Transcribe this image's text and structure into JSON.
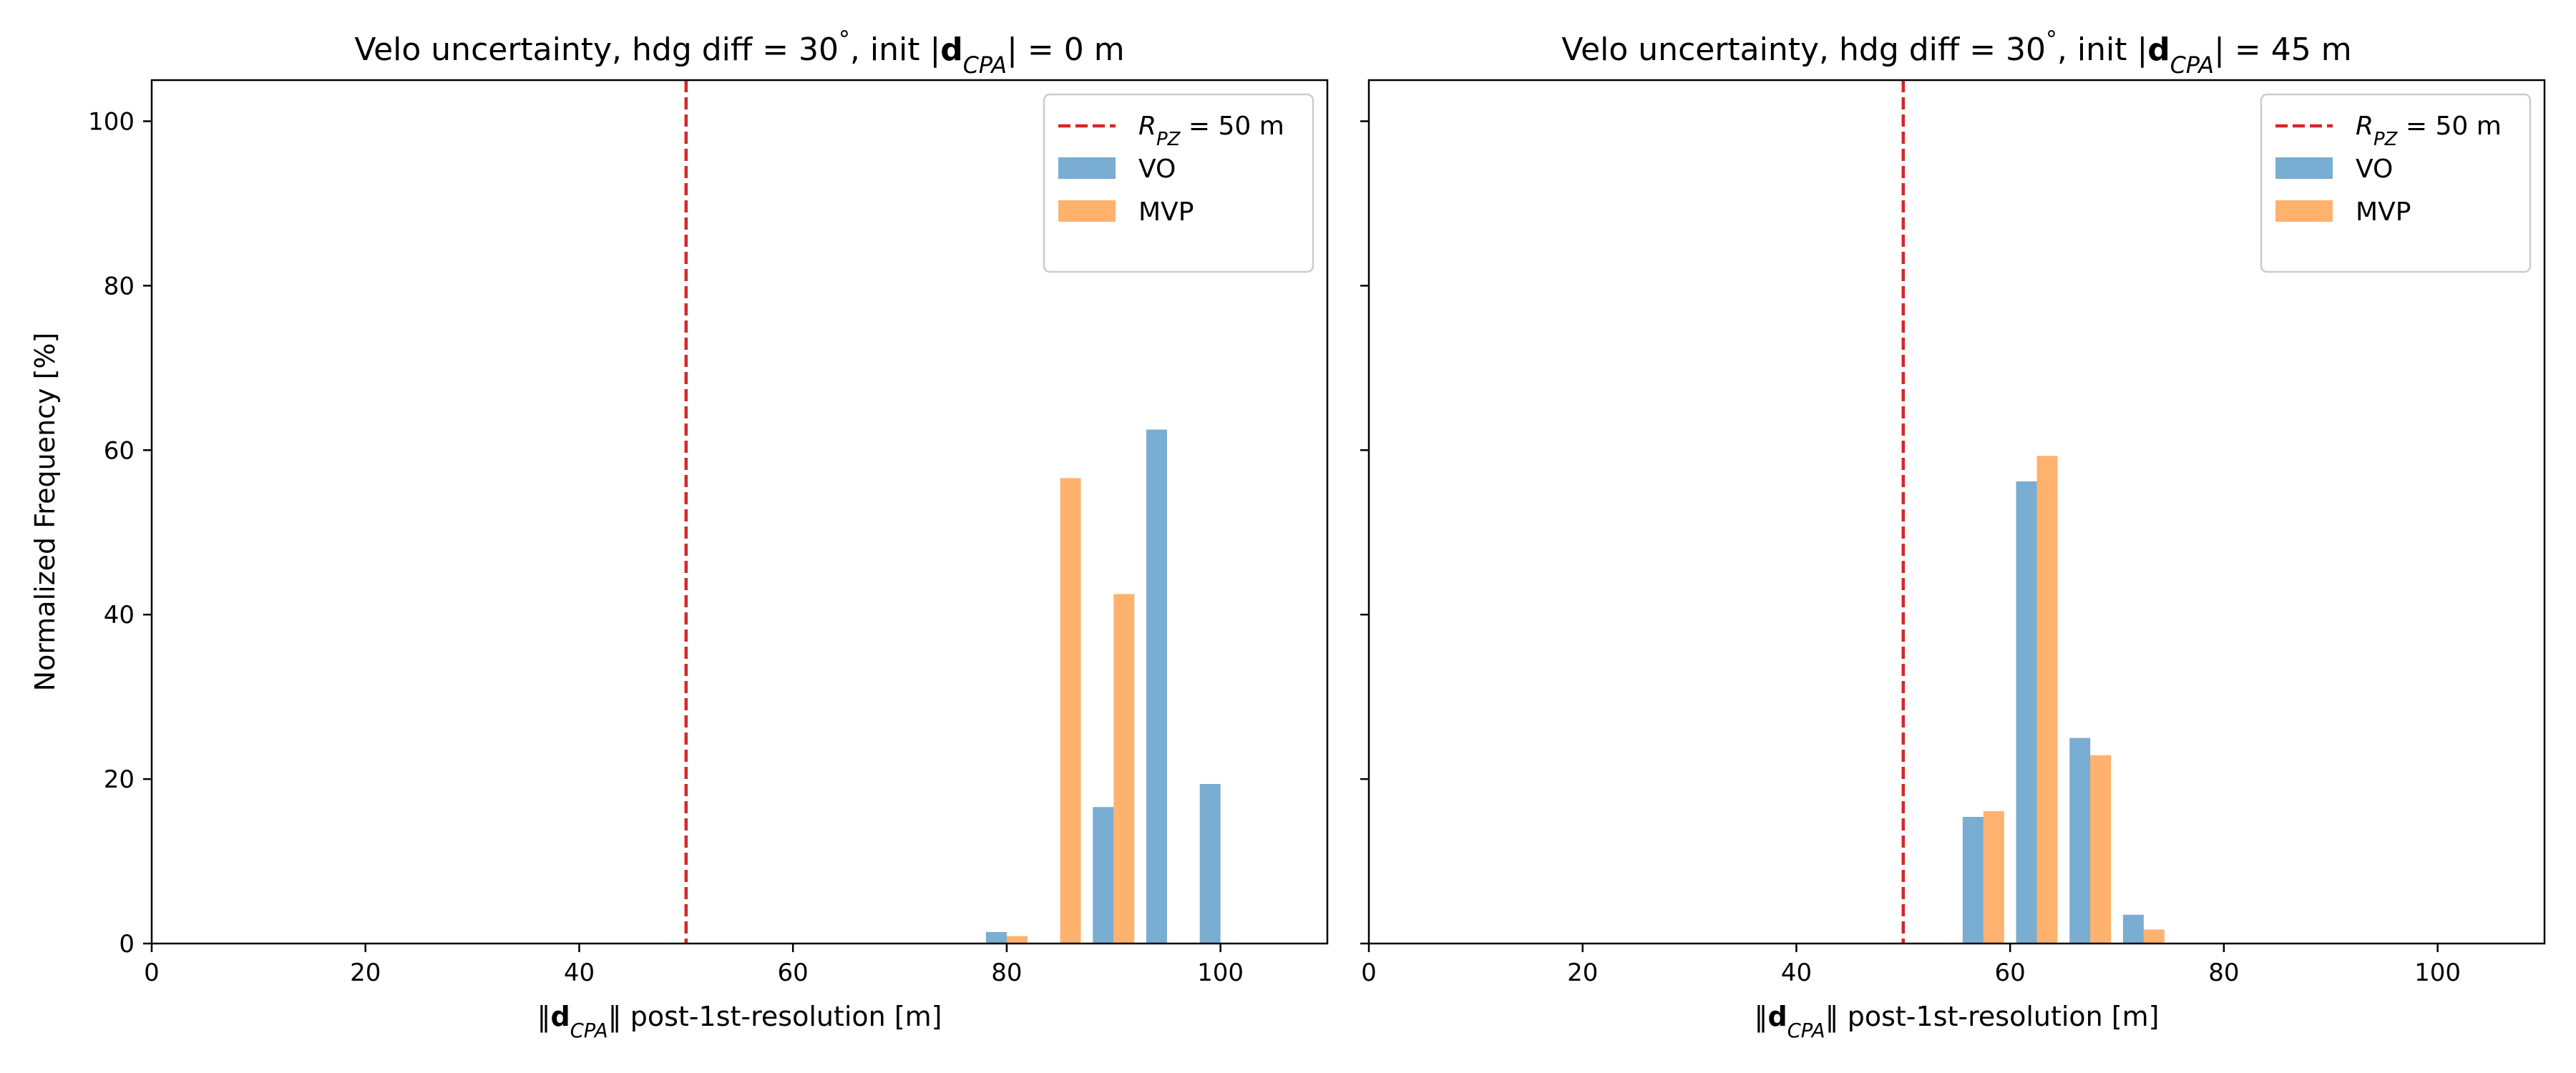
{
  "chart_data": [
    {
      "type": "bar",
      "title_parts": [
        "Velo uncertainty, hdg diff = 30",
        "°",
        ", init |",
        "d",
        "CPA",
        "| = 0 m"
      ],
      "xlabel_parts": [
        "‖",
        "d",
        "CPA",
        "‖ post-1st-resolution [m]"
      ],
      "ylabel": "Normalized Frequency [%]",
      "xlim": [
        0,
        110
      ],
      "ylim": [
        0,
        105
      ],
      "xticks": [
        0,
        20,
        40,
        60,
        80,
        100
      ],
      "yticks": [
        0,
        20,
        40,
        60,
        80,
        100
      ],
      "show_yticks": true,
      "bin_width": 5,
      "threshold": {
        "x": 50,
        "label_parts": [
          "R",
          "PZ",
          " = 50 m"
        ],
        "color": "#d62728"
      },
      "series": [
        {
          "name": "VO",
          "color": "#1f77b4",
          "bin_starts": [
            77.5,
            82.5,
            87.5,
            92.5,
            97.5
          ],
          "values": [
            1.4,
            0,
            16.6,
            62.5,
            19.4
          ]
        },
        {
          "name": "MVP",
          "color": "#ff7f0e",
          "bin_starts": [
            77.5,
            82.5,
            87.5,
            92.5,
            97.5
          ],
          "values": [
            0.9,
            56.6,
            42.5,
            0,
            0
          ]
        }
      ]
    },
    {
      "type": "bar",
      "title_parts": [
        "Velo uncertainty, hdg diff = 30",
        "°",
        ", init |",
        "d",
        "CPA",
        "| = 45 m"
      ],
      "xlabel_parts": [
        "‖",
        "d",
        "CPA",
        "‖ post-1st-resolution [m]"
      ],
      "ylabel": "",
      "xlim": [
        0,
        110
      ],
      "ylim": [
        0,
        105
      ],
      "xticks": [
        0,
        20,
        40,
        60,
        80,
        100
      ],
      "yticks": [
        0,
        20,
        40,
        60,
        80,
        100
      ],
      "show_yticks": false,
      "bin_width": 5,
      "threshold": {
        "x": 50,
        "label_parts": [
          "R",
          "PZ",
          " = 50 m"
        ],
        "color": "#d62728"
      },
      "series": [
        {
          "name": "VO",
          "color": "#1f77b4",
          "bin_starts": [
            55,
            60,
            65,
            70
          ],
          "values": [
            15.4,
            56.2,
            25.0,
            3.5
          ]
        },
        {
          "name": "MVP",
          "color": "#ff7f0e",
          "bin_starts": [
            55,
            60,
            65,
            70
          ],
          "values": [
            16.1,
            59.3,
            22.9,
            1.7
          ]
        }
      ]
    }
  ]
}
